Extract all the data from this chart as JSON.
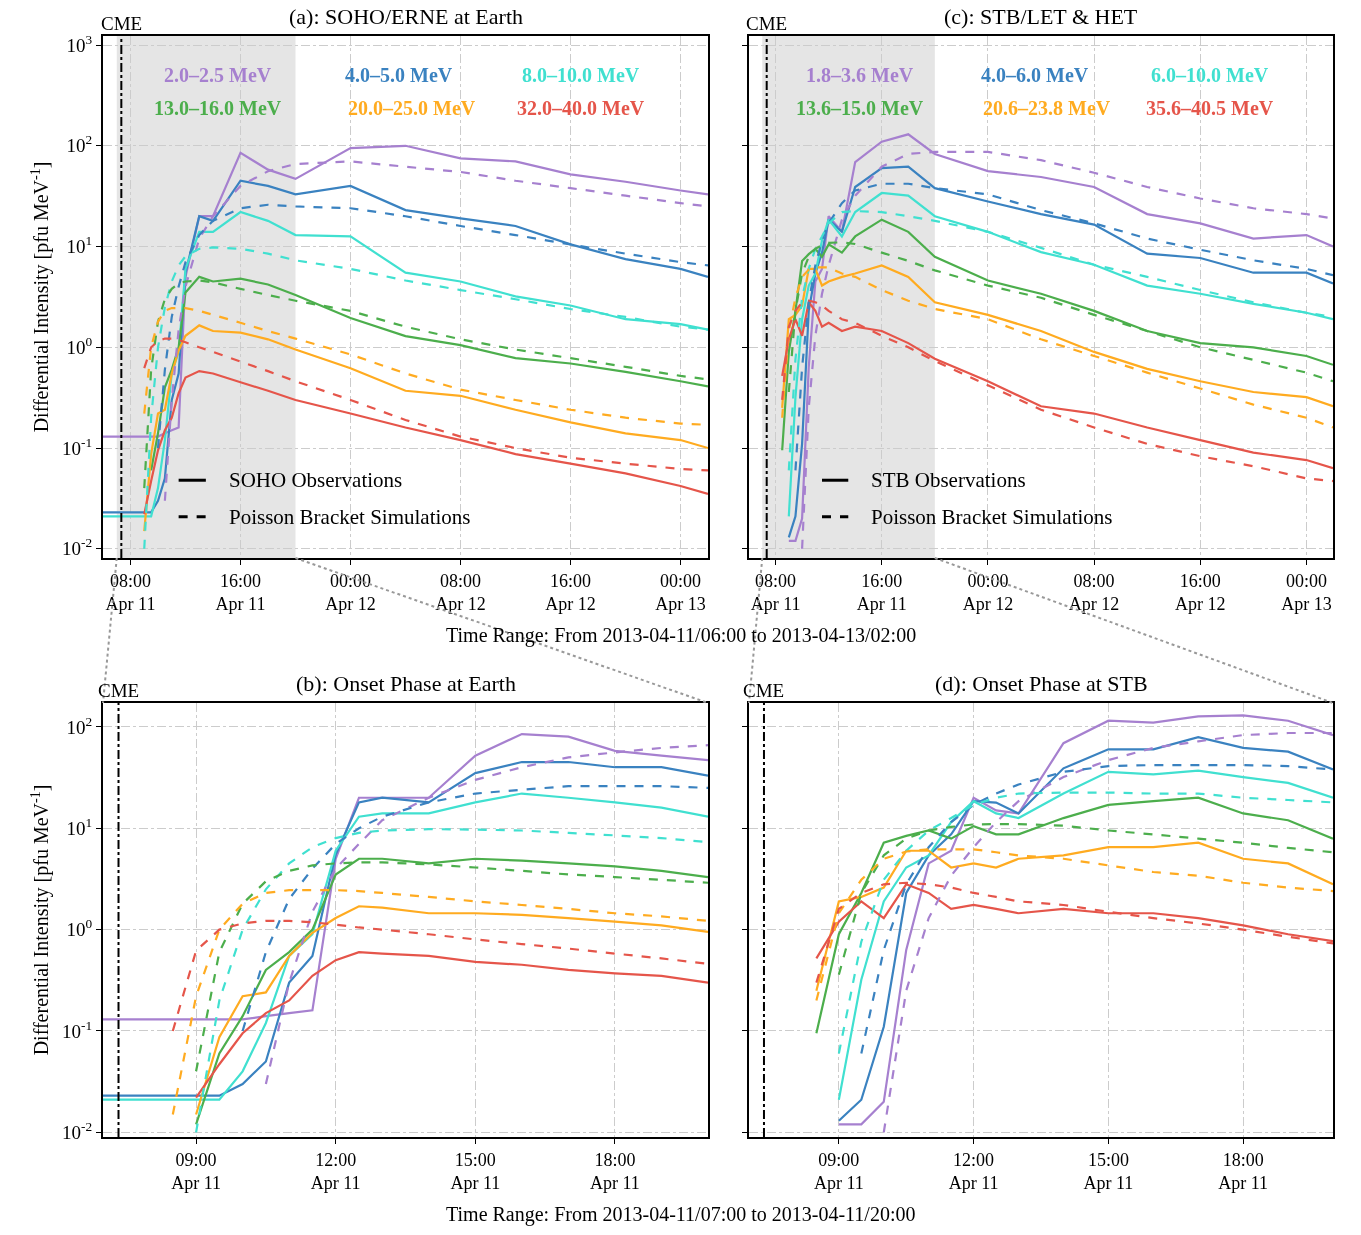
{
  "chart_data": [
    {
      "type": "line",
      "title": "(a): SOHO/ERNE at Earth",
      "xlabel": "Time Range: From 2013-04-11/06:00 to 2013-04-13/02:00",
      "ylabel": "Differential Intensity [pfu MeV$^{-1}$]",
      "log": "y",
      "grid": true,
      "annotations": [
        "SOHO Observations",
        "Poisson Bracket Simulations"
      ],
      "xlim": [
        "2013-04-11T06:00",
        "2013-04-13T02:00"
      ],
      "ylim": [
        0.0081,
        1230
      ],
      "xticks": [
        {
          "value": "2013-04-11T08:00",
          "label": "08:00\nApr 11"
        },
        {
          "value": "2013-04-11T16:00",
          "label": "16:00\nApr 11"
        },
        {
          "value": "2013-04-12T00:00",
          "label": "00:00\nApr 12"
        },
        {
          "value": "2013-04-12T08:00",
          "label": "08:00\nApr 12"
        },
        {
          "value": "2013-04-12T16:00",
          "label": "16:00\nApr 12"
        },
        {
          "value": "2013-04-13T00:00",
          "label": "00:00\nApr 13"
        }
      ],
      "yticks": [
        {
          "value": 0.01,
          "label": "10$^{-2}$"
        },
        {
          "value": 0.1,
          "label": "10$^{-1}$"
        },
        {
          "value": 1,
          "label": "10$^{0}$"
        },
        {
          "value": 10,
          "label": "10$^{1}$"
        },
        {
          "value": 100,
          "label": "10$^{2}$"
        },
        {
          "value": 1000,
          "label": "10$^{3}$"
        }
      ],
      "ref_lines": [
        {
          "axis": "x",
          "value": "2013-04-11T07:20",
          "label": "CME",
          "color": "#000000",
          "line_style": "dashdot"
        }
      ],
      "bands": [
        {
          "axis": "x",
          "from": "2013-04-11T07:00",
          "to": "2013-04-11T20:00",
          "color": "#e5e5e5"
        }
      ],
      "x": [
        "2013-04-11T06:00",
        "2013-04-11T08:00",
        "2013-04-11T09:00",
        "2013-04-11T09:30",
        "2013-04-11T10:00",
        "2013-04-11T10:30",
        "2013-04-11T11:00",
        "2013-04-11T11:30",
        "2013-04-11T12:00",
        "2013-04-11T13:00",
        "2013-04-11T14:00",
        "2013-04-11T16:00",
        "2013-04-11T18:00",
        "2013-04-11T20:00",
        "2013-04-12T00:00",
        "2013-04-12T04:00",
        "2013-04-12T08:00",
        "2013-04-12T12:00",
        "2013-04-12T16:00",
        "2013-04-12T20:00",
        "2013-04-13T00:00",
        "2013-04-13T02:00"
      ],
      "series": [
        {
          "name": "2.0–2.5 MeV",
          "color": "#a680cf",
          "line_style": "solid",
          "values": [
            0.13,
            0.13,
            0.13,
            0.13,
            0.13,
            0.14,
            0.15,
            0.16,
            5,
            20,
            20,
            85,
            58,
            47,
            95,
            100,
            75,
            70,
            52,
            44,
            36,
            33
          ]
        },
        {
          "name": "4.0–5.0 MeV",
          "color": "#3a82c0",
          "line_style": "solid",
          "values": [
            0.023,
            0.023,
            0.023,
            0.023,
            0.03,
            0.05,
            0.3,
            0.55,
            5.5,
            20,
            18,
            45,
            40,
            33,
            40,
            23,
            19,
            16,
            10.5,
            7.5,
            6,
            5
          ]
        },
        {
          "name": "8.0–10.0 MeV",
          "color": "#40e0d0",
          "line_style": "solid",
          "values": [
            0.021,
            0.021,
            0.021,
            0.021,
            0.04,
            0.12,
            0.55,
            0.9,
            6,
            14,
            14,
            22,
            18,
            13,
            12.6,
            5.5,
            4.5,
            3.2,
            2.6,
            1.9,
            1.7,
            1.5
          ]
        },
        {
          "name": "13.0–16.0 MeV",
          "color": "#4cae4c",
          "line_style": "solid",
          "values": [
            null,
            null,
            null,
            0.06,
            0.14,
            0.4,
            0.6,
            1.0,
            3.5,
            5,
            4.5,
            4.8,
            4.2,
            3.3,
            1.95,
            1.29,
            1.05,
            0.78,
            0.69,
            0.57,
            0.46,
            0.41
          ]
        },
        {
          "name": "20.0–25.0 MeV",
          "color": "#ffab20",
          "line_style": "solid",
          "values": [
            null,
            null,
            0.015,
            0.087,
            0.22,
            0.24,
            0.55,
            0.93,
            1.3,
            1.65,
            1.45,
            1.4,
            1.2,
            0.95,
            0.62,
            0.37,
            0.33,
            0.24,
            0.18,
            0.14,
            0.12,
            0.1
          ]
        },
        {
          "name": "32.0–40.0 MeV",
          "color": "#e5554a",
          "line_style": "solid",
          "values": [
            null,
            null,
            0.022,
            0.047,
            0.095,
            0.15,
            0.2,
            0.35,
            0.5,
            0.58,
            0.55,
            0.45,
            0.37,
            0.3,
            0.22,
            0.16,
            0.12,
            0.087,
            0.07,
            0.056,
            0.042,
            0.035
          ]
        },
        {
          "color": "#a680cf",
          "line_style": "dashed",
          "values": [
            null,
            null,
            null,
            null,
            null,
            0.03,
            0.3,
            1.5,
            4,
            12,
            20,
            40,
            56,
            66,
            70,
            62,
            55,
            45,
            38,
            32,
            27,
            25
          ]
        },
        {
          "color": "#3a82c0",
          "line_style": "dashed",
          "values": [
            null,
            null,
            null,
            null,
            0.1,
            0.6,
            2,
            4,
            7,
            13,
            18,
            24,
            26,
            25,
            24,
            20,
            16,
            13,
            10.5,
            8.5,
            7,
            6.5
          ]
        },
        {
          "color": "#40e0d0",
          "line_style": "dashed",
          "values": [
            null,
            null,
            0.01,
            0.2,
            1,
            2.5,
            4.5,
            6.5,
            8,
            9.5,
            9.8,
            9.5,
            8.5,
            7.3,
            6,
            4.6,
            3.7,
            3,
            2.4,
            2,
            1.6,
            1.5
          ]
        },
        {
          "color": "#4cae4c",
          "line_style": "dashed",
          "values": [
            null,
            null,
            0.04,
            0.6,
            1.8,
            3,
            3.8,
            4.3,
            4.5,
            4.6,
            4.4,
            3.8,
            3.3,
            2.9,
            2.3,
            1.6,
            1.2,
            0.95,
            0.78,
            0.64,
            0.52,
            0.48
          ]
        },
        {
          "color": "#ffab20",
          "line_style": "dashed",
          "values": [
            null,
            null,
            0.22,
            1.0,
            1.8,
            2.3,
            2.45,
            2.45,
            2.45,
            2.3,
            2.1,
            1.75,
            1.45,
            1.22,
            0.85,
            0.55,
            0.38,
            0.3,
            0.24,
            0.2,
            0.175,
            0.17
          ]
        },
        {
          "color": "#e5554a",
          "line_style": "dashed",
          "values": [
            null,
            null,
            0.62,
            1.0,
            1.15,
            1.22,
            1.22,
            1.18,
            1.12,
            1.0,
            0.9,
            0.72,
            0.58,
            0.46,
            0.3,
            0.19,
            0.13,
            0.1,
            0.08,
            0.07,
            0.062,
            0.06
          ]
        }
      ]
    },
    {
      "type": "line",
      "title": "(c): STB/LET & HET",
      "log": "y",
      "grid": true,
      "tick_labels": "x",
      "annotations": [
        "STB Observations",
        "Poisson Bracket Simulations"
      ],
      "xlim": [
        "2013-04-11T06:00",
        "2013-04-13T02:00"
      ],
      "ylim": [
        0.0081,
        1230
      ],
      "xticks": [
        {
          "value": "2013-04-11T08:00",
          "label": "08:00\nApr 11"
        },
        {
          "value": "2013-04-11T16:00",
          "label": "16:00\nApr 11"
        },
        {
          "value": "2013-04-12T00:00",
          "label": "00:00\nApr 12"
        },
        {
          "value": "2013-04-12T08:00",
          "label": "08:00\nApr 12"
        },
        {
          "value": "2013-04-12T16:00",
          "label": "16:00\nApr 12"
        },
        {
          "value": "2013-04-13T00:00",
          "label": "00:00\nApr 13"
        }
      ],
      "yticks": [
        {
          "value": 0.01,
          "label": null
        },
        {
          "value": 0.1,
          "label": null
        },
        {
          "value": 1,
          "label": null
        },
        {
          "value": 10,
          "label": null
        },
        {
          "value": 100,
          "label": null
        },
        {
          "value": 1000,
          "label": null
        }
      ],
      "ref_lines": [
        {
          "axis": "x",
          "value": "2013-04-11T07:20",
          "label": "CME",
          "color": "#000000",
          "line_style": "dashdot"
        }
      ],
      "bands": [
        {
          "axis": "x",
          "from": "2013-04-11T07:00",
          "to": "2013-04-11T20:00",
          "color": "#e5e5e5"
        }
      ],
      "x": [
        "2013-04-11T08:30",
        "2013-04-11T09:00",
        "2013-04-11T09:30",
        "2013-04-11T10:00",
        "2013-04-11T10:30",
        "2013-04-11T11:00",
        "2013-04-11T11:30",
        "2013-04-11T12:00",
        "2013-04-11T13:00",
        "2013-04-11T14:00",
        "2013-04-11T16:00",
        "2013-04-11T18:00",
        "2013-04-11T20:00",
        "2013-04-12T00:00",
        "2013-04-12T04:00",
        "2013-04-12T08:00",
        "2013-04-12T12:00",
        "2013-04-12T16:00",
        "2013-04-12T20:00",
        "2013-04-13T00:00",
        "2013-04-13T02:00"
      ],
      "series": [
        {
          "name": "1.8–3.6 MeV",
          "color": "#a680cf",
          "line_style": "solid",
          "values": [
            null,
            0.012,
            0.012,
            0.02,
            0.63,
            4.5,
            6,
            20,
            14,
            69,
            110,
            130,
            83,
            56,
            49,
            39,
            21,
            17,
            12,
            13,
            10
          ]
        },
        {
          "name": "4.0–6.0 MeV",
          "color": "#3a82c0",
          "line_style": "solid",
          "values": [
            null,
            0.013,
            0.021,
            0.11,
            2.3,
            5.4,
            8.7,
            18.5,
            14,
            39,
            60,
            62,
            38,
            28,
            21,
            16.5,
            8.5,
            7.7,
            5.5,
            5.5,
            4.3
          ]
        },
        {
          "name": "6.0–10.0 MeV",
          "color": "#40e0d0",
          "line_style": "solid",
          "values": [
            null,
            0.021,
            0.32,
            1.9,
            4.1,
            5.4,
            11.5,
            18.5,
            12.6,
            22,
            34,
            32,
            20,
            14,
            8.8,
            6.6,
            4.1,
            3.4,
            2.7,
            2.2,
            1.9
          ]
        },
        {
          "name": "13.6–15.0 MeV",
          "color": "#4cae4c",
          "line_style": "solid",
          "values": [
            0.095,
            0.9,
            2.3,
            7.2,
            8.4,
            9.5,
            7.9,
            10.5,
            8.7,
            12.6,
            18.5,
            14,
            7.9,
            4.6,
            3.4,
            2.3,
            1.45,
            1.1,
            1.0,
            0.82,
            0.67
          ]
        },
        {
          "name": "20.6–23.8 MeV",
          "color": "#ffab20",
          "line_style": "solid",
          "values": [
            0.25,
            1.9,
            2.1,
            2.6,
            6,
            6,
            4.1,
            4.5,
            5,
            5.4,
            6.5,
            5,
            2.8,
            2.1,
            1.45,
            0.9,
            0.61,
            0.46,
            0.36,
            0.32,
            0.26
          ]
        },
        {
          "name": "35.6–40.5 MeV",
          "color": "#e5554a",
          "line_style": "solid",
          "values": [
            0.52,
            1.2,
            1.9,
            1.3,
            2.8,
            2.3,
            1.6,
            1.75,
            1.45,
            1.6,
            1.45,
            1.1,
            0.77,
            0.46,
            0.26,
            0.22,
            0.16,
            0.12,
            0.09,
            0.076,
            0.063
          ]
        },
        {
          "color": "#a680cf",
          "line_style": "dashed",
          "values": [
            null,
            null,
            null,
            0.01,
            0.25,
            1.3,
            3.4,
            6.5,
            18.5,
            32,
            62,
            83,
            87,
            87,
            72,
            54,
            39,
            30,
            24,
            21,
            19
          ]
        },
        {
          "color": "#3a82c0",
          "line_style": "dashed",
          "values": [
            null,
            null,
            0.06,
            0.63,
            2.8,
            6.5,
            11.5,
            17,
            27,
            36,
            42,
            42,
            38,
            33,
            23,
            17,
            12,
            9.3,
            7.3,
            6.0,
            5.2
          ]
        },
        {
          "color": "#40e0d0",
          "line_style": "dashed",
          "values": [
            null,
            0.06,
            0.76,
            3.1,
            6,
            9.5,
            12.6,
            17,
            22,
            22.5,
            22,
            20,
            18,
            14,
            9.7,
            6.6,
            5,
            3.7,
            2.8,
            2.2,
            2.0
          ]
        },
        {
          "color": "#4cae4c",
          "line_style": "dashed",
          "values": [
            null,
            0.36,
            2.3,
            5.4,
            7.9,
            9.5,
            10.3,
            10.9,
            11,
            10.6,
            8.7,
            7.2,
            5.8,
            4.1,
            3.1,
            2.1,
            1.45,
            1.0,
            0.75,
            0.56,
            0.46
          ]
        },
        {
          "color": "#ffab20",
          "line_style": "dashed",
          "values": [
            0.2,
            1.45,
            3.1,
            5,
            5.9,
            6.2,
            6.2,
            6.2,
            5.4,
            5,
            3.7,
            2.9,
            2.4,
            1.9,
            1.2,
            0.82,
            0.56,
            0.39,
            0.27,
            0.2,
            0.16
          ]
        },
        {
          "color": "#e5554a",
          "line_style": "dashed",
          "values": [
            0.3,
            1.6,
            2.3,
            2.8,
            2.9,
            2.8,
            2.6,
            2.3,
            1.9,
            1.75,
            1.3,
            1.0,
            0.73,
            0.42,
            0.24,
            0.16,
            0.11,
            0.083,
            0.066,
            0.05,
            0.047
          ]
        }
      ]
    },
    {
      "type": "line",
      "title": "(b): Onset Phase at Earth",
      "xlabel": "Time Range: From 2013-04-11/07:00 to 2013-04-11/20:00",
      "ylabel": "Differential Intensity [pfu MeV$^{-1}$]",
      "log": "y",
      "grid": true,
      "xlim": [
        "2013-04-11T07:00",
        "2013-04-11T20:00"
      ],
      "ylim": [
        0.009,
        172
      ],
      "xticks": [
        {
          "value": "2013-04-11T09:00",
          "label": "09:00\nApr 11"
        },
        {
          "value": "2013-04-11T12:00",
          "label": "12:00\nApr 11"
        },
        {
          "value": "2013-04-11T15:00",
          "label": "15:00\nApr 11"
        },
        {
          "value": "2013-04-11T18:00",
          "label": "18:00\nApr 11"
        }
      ],
      "yticks": [
        {
          "value": 0.01,
          "label": "10$^{-2}$"
        },
        {
          "value": 0.1,
          "label": "10$^{-1}$"
        },
        {
          "value": 1,
          "label": "10$^{0}$"
        },
        {
          "value": 10,
          "label": "10$^{1}$"
        },
        {
          "value": 100,
          "label": "10$^{2}$"
        }
      ],
      "ref_lines": [
        {
          "axis": "x",
          "value": "2013-04-11T07:20",
          "label": "CME",
          "color": "#000000",
          "line_style": "dashdot"
        }
      ],
      "x": [
        "2013-04-11T07:00",
        "2013-04-11T08:00",
        "2013-04-11T08:30",
        "2013-04-11T09:00",
        "2013-04-11T09:30",
        "2013-04-11T10:00",
        "2013-04-11T10:30",
        "2013-04-11T11:00",
        "2013-04-11T11:30",
        "2013-04-11T12:00",
        "2013-04-11T12:30",
        "2013-04-11T13:00",
        "2013-04-11T14:00",
        "2013-04-11T15:00",
        "2013-04-11T16:00",
        "2013-04-11T17:00",
        "2013-04-11T18:00",
        "2013-04-11T19:00",
        "2013-04-11T20:00"
      ],
      "series": [
        {
          "color": "#a680cf",
          "line_style": "solid",
          "values": [
            0.13,
            0.13,
            0.13,
            0.13,
            0.13,
            0.13,
            0.14,
            0.15,
            0.16,
            5,
            20,
            20,
            20,
            52,
            85,
            80,
            58,
            52,
            47
          ]
        },
        {
          "color": "#3a82c0",
          "line_style": "solid",
          "values": [
            0.023,
            0.023,
            0.023,
            0.023,
            0.023,
            0.03,
            0.05,
            0.3,
            0.55,
            5.5,
            18,
            20,
            18,
            35,
            45,
            45,
            40,
            40,
            33
          ]
        },
        {
          "color": "#40e0d0",
          "line_style": "solid",
          "values": [
            0.021,
            0.021,
            0.021,
            0.021,
            0.021,
            0.04,
            0.12,
            0.55,
            0.9,
            6,
            13,
            14,
            14,
            18,
            22,
            20,
            18,
            16,
            13
          ]
        },
        {
          "color": "#4cae4c",
          "line_style": "solid",
          "values": [
            null,
            null,
            null,
            0.012,
            0.06,
            0.14,
            0.4,
            0.6,
            1.0,
            3.5,
            5,
            5,
            4.5,
            5,
            4.8,
            4.5,
            4.2,
            3.8,
            3.3
          ]
        },
        {
          "color": "#ffab20",
          "line_style": "solid",
          "values": [
            null,
            null,
            null,
            0.015,
            0.087,
            0.22,
            0.24,
            0.55,
            0.93,
            1.3,
            1.7,
            1.65,
            1.45,
            1.45,
            1.4,
            1.3,
            1.2,
            1.1,
            0.95
          ]
        },
        {
          "color": "#e5554a",
          "line_style": "solid",
          "values": [
            null,
            null,
            null,
            0.022,
            0.047,
            0.095,
            0.15,
            0.2,
            0.35,
            0.5,
            0.6,
            0.58,
            0.55,
            0.48,
            0.45,
            0.4,
            0.37,
            0.35,
            0.3
          ]
        },
        {
          "color": "#a680cf",
          "line_style": "dashed",
          "values": [
            null,
            null,
            null,
            null,
            null,
            null,
            0.03,
            0.3,
            1.5,
            4,
            7,
            12,
            20,
            30,
            40,
            50,
            56,
            62,
            66
          ]
        },
        {
          "color": "#3a82c0",
          "line_style": "dashed",
          "values": [
            null,
            null,
            null,
            null,
            null,
            0.1,
            0.6,
            2,
            4,
            7,
            10,
            13,
            18,
            22,
            24,
            26,
            26,
            26,
            25
          ]
        },
        {
          "color": "#40e0d0",
          "line_style": "dashed",
          "values": [
            null,
            null,
            null,
            0.01,
            0.2,
            1,
            2.5,
            4.5,
            6.5,
            8,
            9,
            9.5,
            9.8,
            9.7,
            9.5,
            9,
            8.5,
            8,
            7.3
          ]
        },
        {
          "color": "#4cae4c",
          "line_style": "dashed",
          "values": [
            null,
            null,
            null,
            0.04,
            0.6,
            1.8,
            3,
            3.8,
            4.3,
            4.5,
            4.6,
            4.6,
            4.4,
            4.1,
            3.8,
            3.5,
            3.3,
            3.1,
            2.9
          ]
        },
        {
          "color": "#ffab20",
          "line_style": "dashed",
          "values": [
            null,
            null,
            0.015,
            0.22,
            1.0,
            1.8,
            2.3,
            2.45,
            2.45,
            2.45,
            2.4,
            2.3,
            2.1,
            1.9,
            1.75,
            1.6,
            1.45,
            1.35,
            1.22
          ]
        },
        {
          "color": "#e5554a",
          "line_style": "dashed",
          "values": [
            null,
            null,
            0.1,
            0.62,
            1.0,
            1.15,
            1.22,
            1.22,
            1.18,
            1.12,
            1.05,
            1.0,
            0.9,
            0.8,
            0.72,
            0.65,
            0.58,
            0.52,
            0.46
          ]
        }
      ]
    },
    {
      "type": "line",
      "title": "(d): Onset Phase at STB",
      "log": "y",
      "grid": true,
      "tick_labels": "x",
      "xlim": [
        "2013-04-11T07:00",
        "2013-04-11T20:00"
      ],
      "ylim": [
        0.009,
        172
      ],
      "xticks": [
        {
          "value": "2013-04-11T09:00",
          "label": "09:00\nApr 11"
        },
        {
          "value": "2013-04-11T12:00",
          "label": "12:00\nApr 11"
        },
        {
          "value": "2013-04-11T15:00",
          "label": "15:00\nApr 11"
        },
        {
          "value": "2013-04-11T18:00",
          "label": "18:00\nApr 11"
        }
      ],
      "yticks": [
        {
          "value": 0.01,
          "label": null
        },
        {
          "value": 0.1,
          "label": null
        },
        {
          "value": 1,
          "label": null
        },
        {
          "value": 10,
          "label": null
        },
        {
          "value": 100,
          "label": null
        }
      ],
      "ref_lines": [
        {
          "axis": "x",
          "value": "2013-04-11T07:20",
          "label": "CME",
          "color": "#000000",
          "line_style": "dashdot"
        }
      ],
      "x": [
        "2013-04-11T08:30",
        "2013-04-11T09:00",
        "2013-04-11T09:30",
        "2013-04-11T10:00",
        "2013-04-11T10:30",
        "2013-04-11T11:00",
        "2013-04-11T11:30",
        "2013-04-11T12:00",
        "2013-04-11T12:30",
        "2013-04-11T13:00",
        "2013-04-11T14:00",
        "2013-04-11T15:00",
        "2013-04-11T16:00",
        "2013-04-11T17:00",
        "2013-04-11T18:00",
        "2013-04-11T19:00",
        "2013-04-11T20:00"
      ],
      "series": [
        {
          "color": "#a680cf",
          "line_style": "solid",
          "values": [
            null,
            0.012,
            0.012,
            0.02,
            0.63,
            4.5,
            6,
            20,
            15,
            14,
            69,
            115,
            110,
            127,
            130,
            115,
            83
          ]
        },
        {
          "color": "#3a82c0",
          "line_style": "solid",
          "values": [
            null,
            0.013,
            0.021,
            0.11,
            2.3,
            5.4,
            8.7,
            18.5,
            17.9,
            14,
            39,
            60,
            60,
            79,
            62,
            57,
            38
          ]
        },
        {
          "color": "#40e0d0",
          "line_style": "solid",
          "values": [
            null,
            0.021,
            0.32,
            1.9,
            4.1,
            5.4,
            11.5,
            18.5,
            14,
            12.6,
            22,
            36,
            34,
            37,
            32,
            28,
            20
          ]
        },
        {
          "color": "#4cae4c",
          "line_style": "solid",
          "values": [
            0.095,
            0.9,
            2.3,
            7.2,
            8.4,
            9.5,
            7.9,
            10.5,
            8.7,
            8.7,
            12.6,
            17,
            18.5,
            20,
            14,
            12,
            7.9
          ]
        },
        {
          "color": "#ffab20",
          "line_style": "solid",
          "values": [
            0.25,
            1.9,
            2.1,
            2.6,
            6,
            6,
            4.1,
            4.5,
            4.1,
            5,
            5.4,
            6.5,
            6.5,
            7.2,
            5,
            4.5,
            2.8
          ]
        },
        {
          "color": "#e5554a",
          "line_style": "solid",
          "values": [
            0.52,
            1.2,
            1.9,
            1.3,
            2.8,
            2.3,
            1.6,
            1.75,
            1.6,
            1.45,
            1.6,
            1.45,
            1.45,
            1.3,
            1.1,
            0.9,
            0.77
          ]
        },
        {
          "color": "#a680cf",
          "line_style": "dashed",
          "values": [
            null,
            null,
            null,
            0.01,
            0.25,
            1.3,
            3.4,
            6.5,
            11.5,
            18.5,
            32,
            47,
            62,
            72,
            83,
            87,
            87
          ]
        },
        {
          "color": "#3a82c0",
          "line_style": "dashed",
          "values": [
            null,
            null,
            0.06,
            0.63,
            2.8,
            6.5,
            11.5,
            17,
            22,
            27,
            36,
            41,
            42,
            42,
            42,
            41,
            38
          ]
        },
        {
          "color": "#40e0d0",
          "line_style": "dashed",
          "values": [
            null,
            0.06,
            0.76,
            3.1,
            6,
            9.5,
            12.6,
            17,
            20,
            22,
            22.5,
            22.5,
            22,
            22,
            20,
            19,
            18
          ]
        },
        {
          "color": "#4cae4c",
          "line_style": "dashed",
          "values": [
            null,
            0.36,
            2.3,
            5.4,
            7.9,
            9.5,
            10.3,
            10.9,
            11,
            11,
            10.6,
            9.5,
            8.7,
            7.9,
            7.2,
            6.4,
            5.8
          ]
        },
        {
          "color": "#ffab20",
          "line_style": "dashed",
          "values": [
            0.2,
            1.45,
            3.1,
            5,
            5.9,
            6.2,
            6.2,
            6.2,
            5.8,
            5.4,
            5,
            4.3,
            3.7,
            3.4,
            2.9,
            2.6,
            2.4
          ]
        },
        {
          "color": "#e5554a",
          "line_style": "dashed",
          "values": [
            0.3,
            1.6,
            2.3,
            2.8,
            2.9,
            2.8,
            2.6,
            2.3,
            2.1,
            1.9,
            1.75,
            1.5,
            1.3,
            1.15,
            1.0,
            0.85,
            0.73
          ]
        }
      ]
    }
  ]
}
